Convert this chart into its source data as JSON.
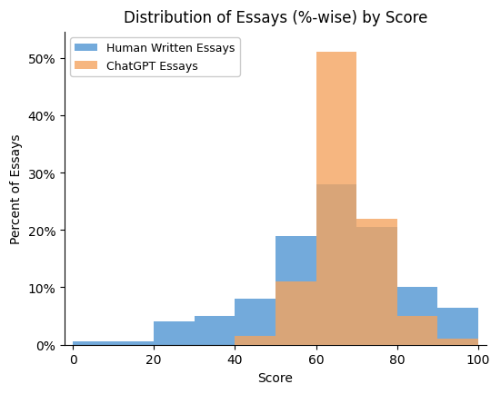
{
  "title": "Distribution of Essays (%-wise) by Score",
  "xlabel": "Score",
  "ylabel": "Percent of Essays",
  "human_color": "#5B9BD5",
  "chatgpt_color": "#F4A460",
  "human_alpha": 0.85,
  "chatgpt_alpha": 0.8,
  "bin_edges": [
    0,
    10,
    20,
    30,
    40,
    50,
    60,
    70,
    80,
    90,
    100
  ],
  "human_values": [
    0.005,
    0.005,
    0.04,
    0.05,
    0.08,
    0.19,
    0.28,
    0.205,
    0.1,
    0.065
  ],
  "chatgpt_values": [
    0.0,
    0.0,
    0.0,
    0.0,
    0.015,
    0.11,
    0.51,
    0.22,
    0.05,
    0.01
  ],
  "xlim": [
    -2,
    102
  ],
  "ylim": [
    0,
    0.545
  ],
  "yticks": [
    0.0,
    0.1,
    0.2,
    0.3,
    0.4,
    0.5
  ],
  "ytick_labels": [
    "0%",
    "10%",
    "20%",
    "30%",
    "40%",
    "50%"
  ],
  "xticks": [
    0,
    20,
    40,
    60,
    80,
    100
  ],
  "legend_labels": [
    "Human Written Essays",
    "ChatGPT Essays"
  ],
  "figsize": [
    5.51,
    4.35
  ],
  "dpi": 100
}
